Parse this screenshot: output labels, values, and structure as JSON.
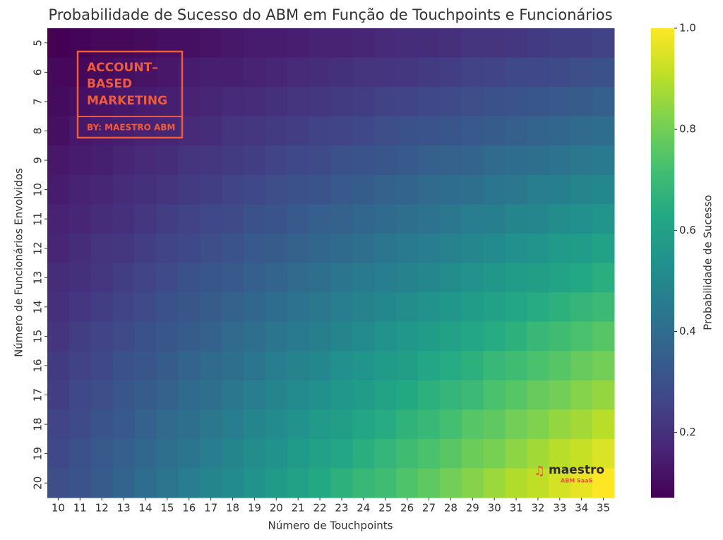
{
  "chart_data": {
    "type": "heatmap",
    "title": "Probabilidade de Sucesso do ABM em Função de Touchpoints e Funcionários",
    "x_label": "Número de Touchpoints",
    "y_label": "Número de Funcionários Envolvidos",
    "colorbar_label": "Probabilidade de Sucesso",
    "colormap": "viridis",
    "x_categories": [
      10,
      11,
      12,
      13,
      14,
      15,
      16,
      17,
      18,
      19,
      20,
      21,
      22,
      23,
      24,
      25,
      26,
      27,
      28,
      29,
      30,
      31,
      32,
      33,
      34,
      35
    ],
    "y_categories": [
      5,
      6,
      7,
      8,
      9,
      10,
      11,
      12,
      13,
      14,
      15,
      16,
      17,
      18,
      19,
      20
    ],
    "values": [
      [
        0.07,
        0.08,
        0.09,
        0.09,
        0.1,
        0.11,
        0.11,
        0.12,
        0.13,
        0.14,
        0.14,
        0.15,
        0.16,
        0.16,
        0.17,
        0.18,
        0.19,
        0.19,
        0.2,
        0.21,
        0.21,
        0.22,
        0.23,
        0.24,
        0.24,
        0.25
      ],
      [
        0.09,
        0.09,
        0.1,
        0.11,
        0.12,
        0.13,
        0.14,
        0.15,
        0.15,
        0.16,
        0.17,
        0.18,
        0.19,
        0.2,
        0.21,
        0.21,
        0.22,
        0.23,
        0.24,
        0.25,
        0.26,
        0.27,
        0.27,
        0.28,
        0.29,
        0.3
      ],
      [
        0.1,
        0.11,
        0.12,
        0.13,
        0.14,
        0.15,
        0.16,
        0.17,
        0.18,
        0.19,
        0.2,
        0.21,
        0.22,
        0.23,
        0.24,
        0.25,
        0.26,
        0.27,
        0.28,
        0.29,
        0.3,
        0.31,
        0.32,
        0.33,
        0.34,
        0.35
      ],
      [
        0.11,
        0.13,
        0.14,
        0.15,
        0.16,
        0.17,
        0.18,
        0.19,
        0.21,
        0.22,
        0.23,
        0.24,
        0.25,
        0.26,
        0.27,
        0.29,
        0.3,
        0.31,
        0.32,
        0.33,
        0.34,
        0.35,
        0.37,
        0.38,
        0.39,
        0.4
      ],
      [
        0.13,
        0.14,
        0.15,
        0.17,
        0.18,
        0.19,
        0.21,
        0.22,
        0.23,
        0.24,
        0.26,
        0.27,
        0.28,
        0.3,
        0.31,
        0.32,
        0.33,
        0.35,
        0.36,
        0.37,
        0.39,
        0.4,
        0.41,
        0.42,
        0.44,
        0.45
      ],
      [
        0.14,
        0.16,
        0.17,
        0.19,
        0.2,
        0.21,
        0.23,
        0.24,
        0.26,
        0.27,
        0.29,
        0.3,
        0.31,
        0.33,
        0.34,
        0.36,
        0.37,
        0.39,
        0.4,
        0.41,
        0.43,
        0.44,
        0.46,
        0.47,
        0.49,
        0.5
      ],
      [
        0.16,
        0.17,
        0.19,
        0.2,
        0.22,
        0.24,
        0.25,
        0.27,
        0.28,
        0.3,
        0.31,
        0.33,
        0.35,
        0.36,
        0.38,
        0.39,
        0.41,
        0.42,
        0.44,
        0.46,
        0.47,
        0.49,
        0.5,
        0.52,
        0.53,
        0.55
      ],
      [
        0.17,
        0.19,
        0.21,
        0.22,
        0.24,
        0.26,
        0.27,
        0.29,
        0.31,
        0.33,
        0.34,
        0.36,
        0.38,
        0.39,
        0.41,
        0.43,
        0.45,
        0.46,
        0.48,
        0.5,
        0.51,
        0.53,
        0.55,
        0.57,
        0.58,
        0.6
      ],
      [
        0.19,
        0.2,
        0.22,
        0.24,
        0.26,
        0.28,
        0.3,
        0.32,
        0.33,
        0.35,
        0.37,
        0.39,
        0.41,
        0.43,
        0.45,
        0.46,
        0.48,
        0.5,
        0.52,
        0.54,
        0.56,
        0.58,
        0.59,
        0.61,
        0.63,
        0.65
      ],
      [
        0.2,
        0.22,
        0.24,
        0.26,
        0.28,
        0.3,
        0.32,
        0.34,
        0.36,
        0.38,
        0.4,
        0.42,
        0.44,
        0.46,
        0.48,
        0.5,
        0.52,
        0.54,
        0.56,
        0.58,
        0.6,
        0.62,
        0.64,
        0.66,
        0.68,
        0.7
      ],
      [
        0.21,
        0.24,
        0.26,
        0.28,
        0.3,
        0.32,
        0.34,
        0.36,
        0.39,
        0.41,
        0.43,
        0.45,
        0.47,
        0.49,
        0.51,
        0.54,
        0.56,
        0.58,
        0.6,
        0.62,
        0.64,
        0.66,
        0.69,
        0.71,
        0.73,
        0.75
      ],
      [
        0.23,
        0.25,
        0.27,
        0.3,
        0.32,
        0.34,
        0.37,
        0.39,
        0.41,
        0.43,
        0.46,
        0.48,
        0.5,
        0.53,
        0.55,
        0.57,
        0.59,
        0.62,
        0.64,
        0.66,
        0.69,
        0.71,
        0.73,
        0.75,
        0.78,
        0.8
      ],
      [
        0.24,
        0.27,
        0.29,
        0.32,
        0.34,
        0.36,
        0.39,
        0.41,
        0.44,
        0.46,
        0.49,
        0.51,
        0.53,
        0.56,
        0.58,
        0.61,
        0.63,
        0.66,
        0.68,
        0.7,
        0.73,
        0.75,
        0.78,
        0.8,
        0.83,
        0.85
      ],
      [
        0.26,
        0.28,
        0.31,
        0.33,
        0.36,
        0.39,
        0.41,
        0.44,
        0.46,
        0.49,
        0.51,
        0.54,
        0.57,
        0.59,
        0.62,
        0.64,
        0.67,
        0.69,
        0.72,
        0.75,
        0.77,
        0.8,
        0.82,
        0.85,
        0.87,
        0.9
      ],
      [
        0.27,
        0.3,
        0.33,
        0.35,
        0.38,
        0.41,
        0.43,
        0.46,
        0.49,
        0.52,
        0.54,
        0.57,
        0.6,
        0.62,
        0.65,
        0.68,
        0.71,
        0.73,
        0.76,
        0.79,
        0.81,
        0.84,
        0.87,
        0.9,
        0.92,
        0.95
      ],
      [
        0.29,
        0.31,
        0.34,
        0.37,
        0.4,
        0.43,
        0.46,
        0.49,
        0.51,
        0.54,
        0.57,
        0.6,
        0.63,
        0.66,
        0.69,
        0.71,
        0.74,
        0.77,
        0.8,
        0.83,
        0.86,
        0.89,
        0.91,
        0.94,
        0.97,
        1.0
      ]
    ],
    "clim": [
      0.071,
      1
    ],
    "cticks": [
      0.2,
      0.4,
      0.6,
      0.8,
      {
        "value": 1,
        "label": "1.0"
      }
    ],
    "annotations": {
      "logo_lines": [
        "ACCOUNT–",
        "BASED",
        "MARKETING"
      ],
      "logo_byline": "BY: MAESTRO ABM",
      "brand": "maestro",
      "brand_sub": "ABM SaaS"
    }
  }
}
